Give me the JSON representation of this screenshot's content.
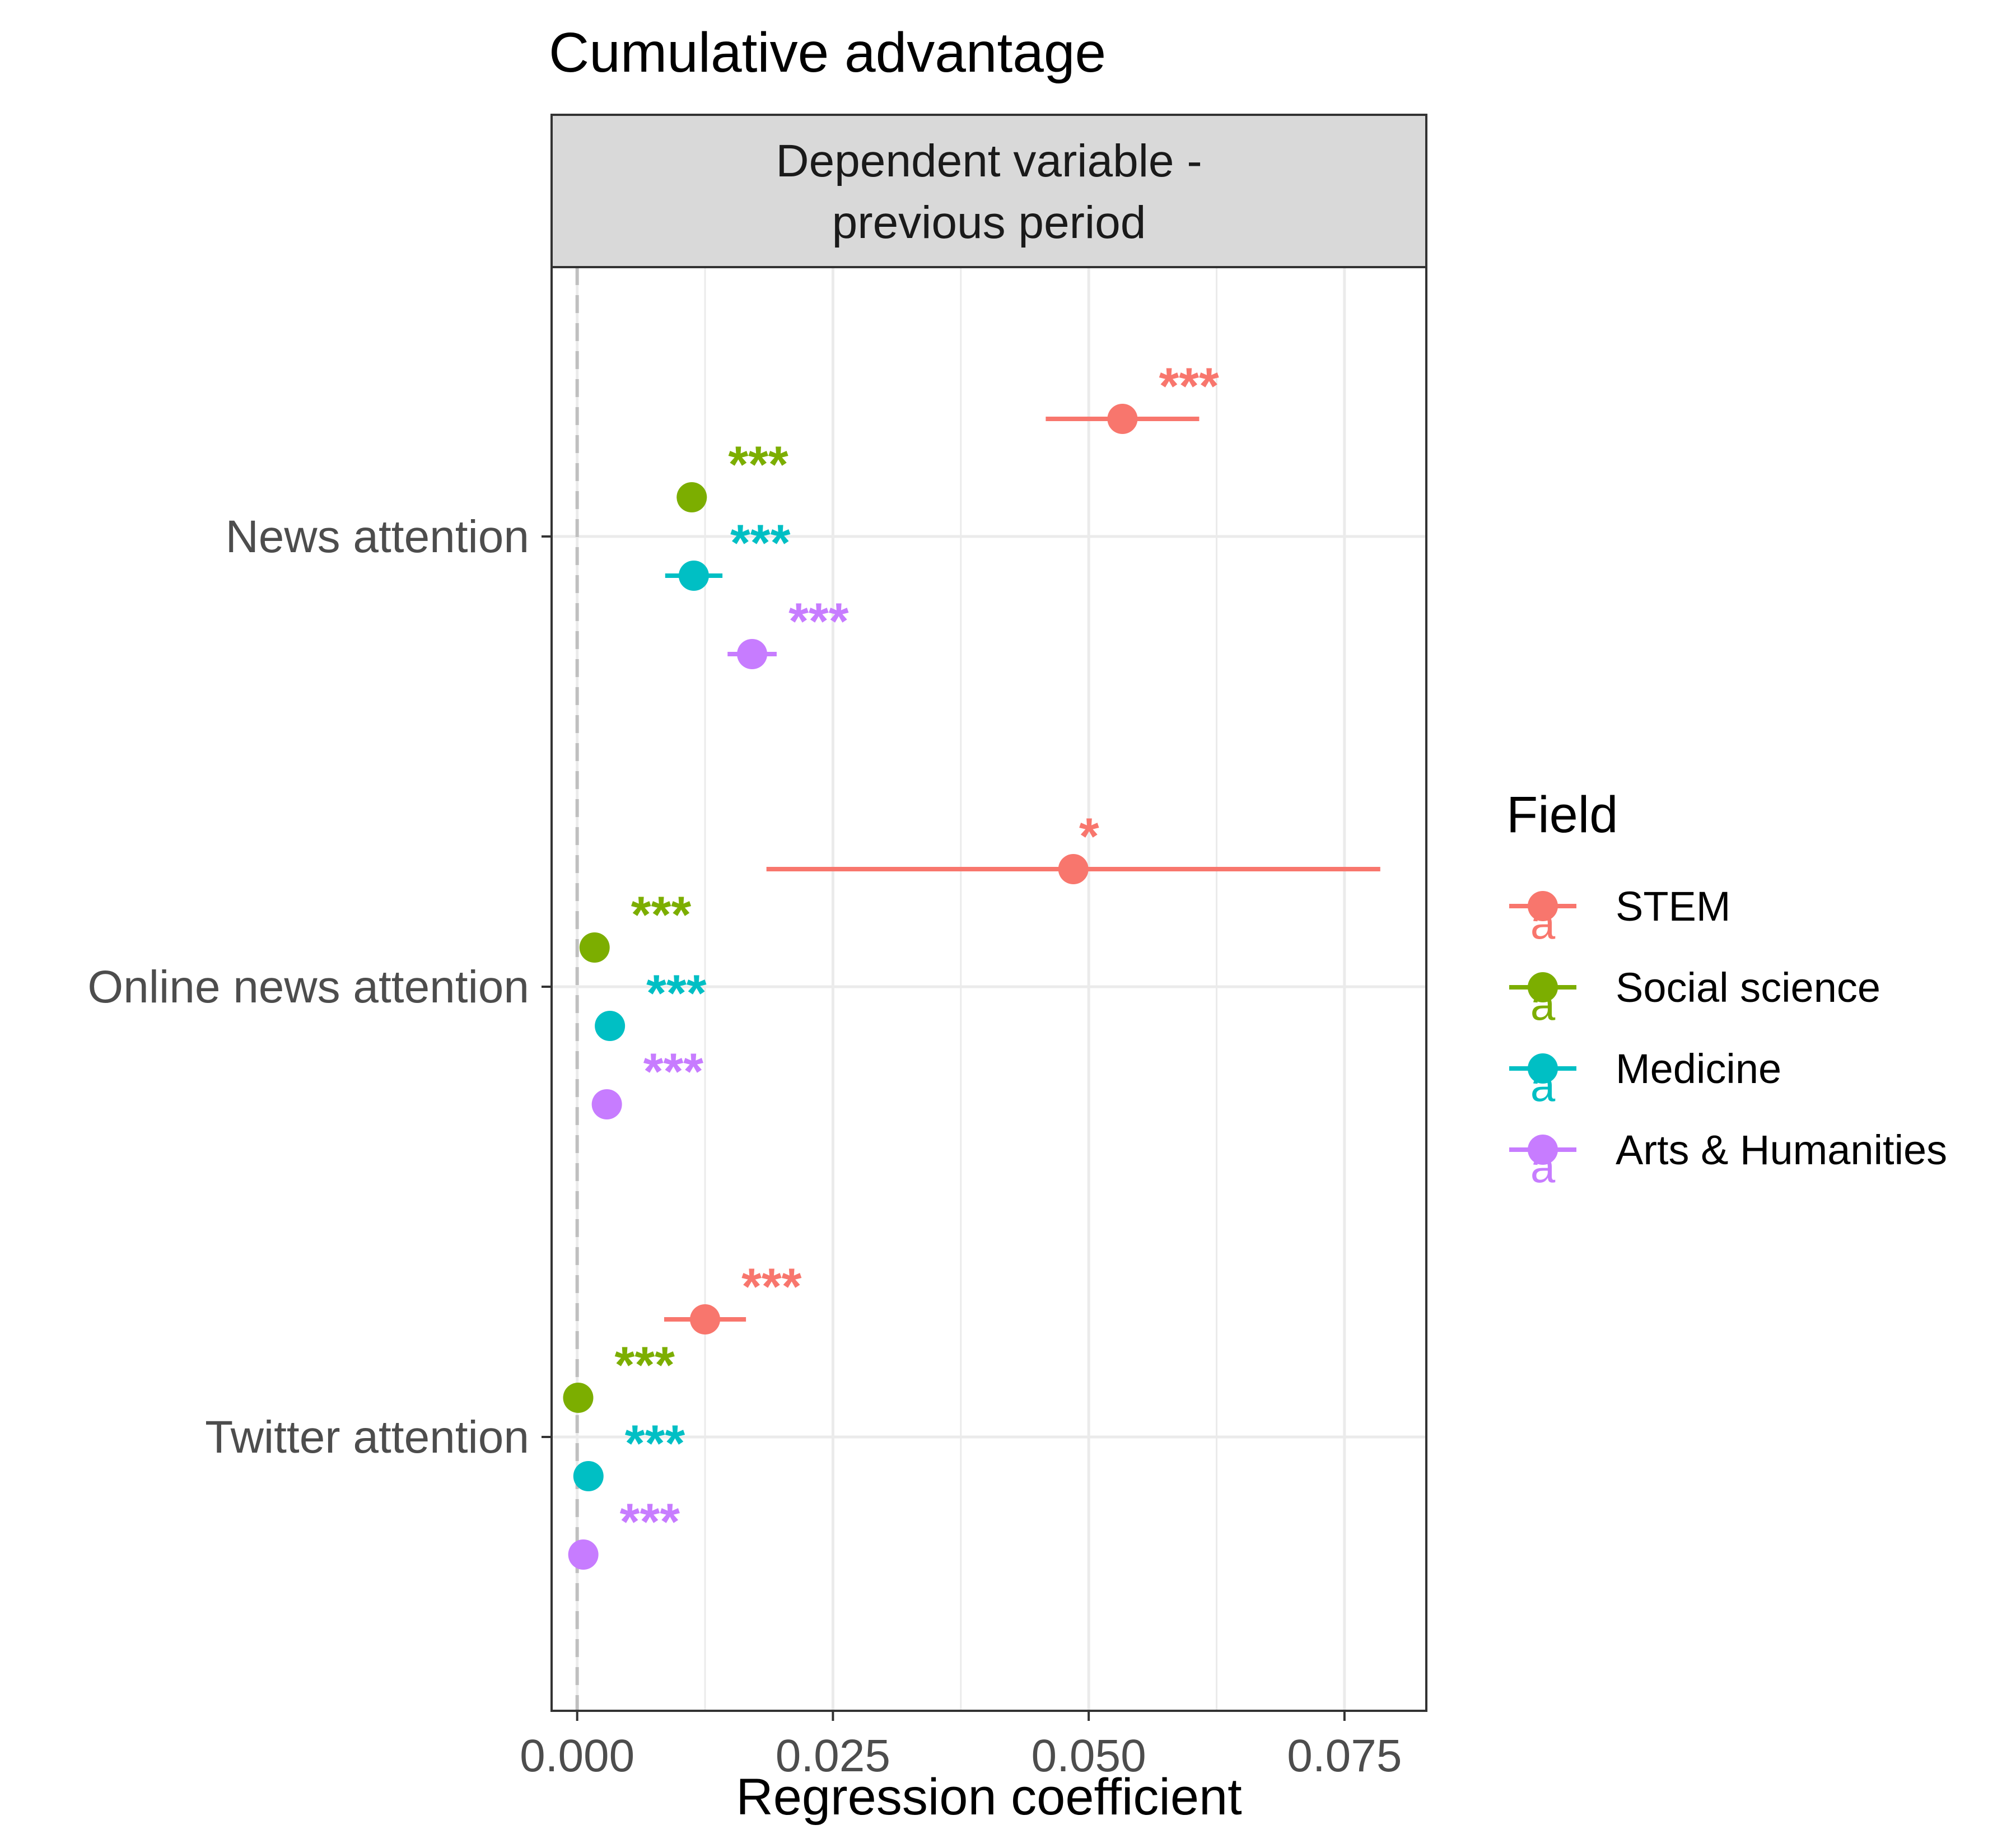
{
  "chart_data": {
    "type": "scatter",
    "title": "Cumulative advantage",
    "facet_label": "Dependent variable -\nprevious period",
    "xlabel": "Regression coefficient",
    "ylabel": "",
    "xlim": [
      -0.0025,
      0.083
    ],
    "xticks": [
      "0.000",
      "0.025",
      "0.050",
      "0.075"
    ],
    "xtick_values": [
      0.0,
      0.025,
      0.05,
      0.075
    ],
    "grid": true,
    "reference_line_x": 0,
    "categories": [
      "News attention",
      "Online news attention",
      "Twitter attention"
    ],
    "legend": {
      "title": "Field",
      "position": "right",
      "key_glyph": "a"
    },
    "series": [
      {
        "name": "STEM",
        "color": "#F8766D",
        "points": [
          {
            "category": "News attention",
            "estimate": 0.0533,
            "ci_low": 0.0458,
            "ci_high": 0.0608,
            "sig": "***"
          },
          {
            "category": "Online news attention",
            "estimate": 0.0485,
            "ci_low": 0.0185,
            "ci_high": 0.0785,
            "sig": "*"
          },
          {
            "category": "Twitter attention",
            "estimate": 0.0125,
            "ci_low": 0.0085,
            "ci_high": 0.0165,
            "sig": "***"
          }
        ]
      },
      {
        "name": "Social science",
        "color": "#7CAE00",
        "points": [
          {
            "category": "News attention",
            "estimate": 0.0112,
            "ci_low": 0.0107,
            "ci_high": 0.0117,
            "sig": "***"
          },
          {
            "category": "Online news attention",
            "estimate": 0.0017,
            "ci_low": 0.0013,
            "ci_high": 0.0021,
            "sig": "***"
          },
          {
            "category": "Twitter attention",
            "estimate": 0.0001,
            "ci_low": 0.0,
            "ci_high": 0.0002,
            "sig": "***"
          }
        ]
      },
      {
        "name": "Medicine",
        "color": "#00BFC4",
        "points": [
          {
            "category": "News attention",
            "estimate": 0.0114,
            "ci_low": 0.0086,
            "ci_high": 0.0142,
            "sig": "***"
          },
          {
            "category": "Online news attention",
            "estimate": 0.0032,
            "ci_low": 0.0027,
            "ci_high": 0.0037,
            "sig": "***"
          },
          {
            "category": "Twitter attention",
            "estimate": 0.0011,
            "ci_low": 0.0008,
            "ci_high": 0.0014,
            "sig": "***"
          }
        ]
      },
      {
        "name": "Arts & Humanities",
        "color": "#C77CFF",
        "points": [
          {
            "category": "News attention",
            "estimate": 0.0171,
            "ci_low": 0.0147,
            "ci_high": 0.0195,
            "sig": "***"
          },
          {
            "category": "Online news attention",
            "estimate": 0.0029,
            "ci_low": 0.0024,
            "ci_high": 0.0034,
            "sig": "***"
          },
          {
            "category": "Twitter attention",
            "estimate": 0.0006,
            "ci_low": 0.0003,
            "ci_high": 0.0009,
            "sig": "***"
          }
        ]
      }
    ]
  }
}
